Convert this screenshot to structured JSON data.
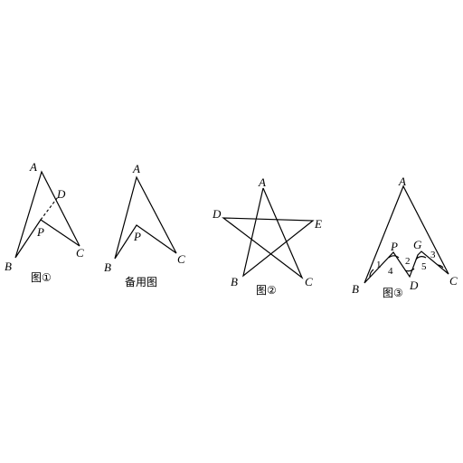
{
  "figures": [
    {
      "caption": "图①",
      "vertices": {
        "A": "A",
        "B": "B",
        "C": "C",
        "D": "D",
        "P": "P"
      }
    },
    {
      "caption": "备用图",
      "vertices": {
        "A": "A",
        "B": "B",
        "C": "C",
        "P": "P"
      }
    },
    {
      "caption": "图②",
      "vertices": {
        "A": "A",
        "B": "B",
        "C": "C",
        "D": "D",
        "E": "E"
      }
    },
    {
      "caption": "图③",
      "vertices": {
        "A": "A",
        "B": "B",
        "C": "C",
        "D": "D",
        "P": "P",
        "G": "G"
      },
      "angle_labels": [
        "1",
        "2",
        "3",
        "4",
        "5"
      ]
    }
  ]
}
